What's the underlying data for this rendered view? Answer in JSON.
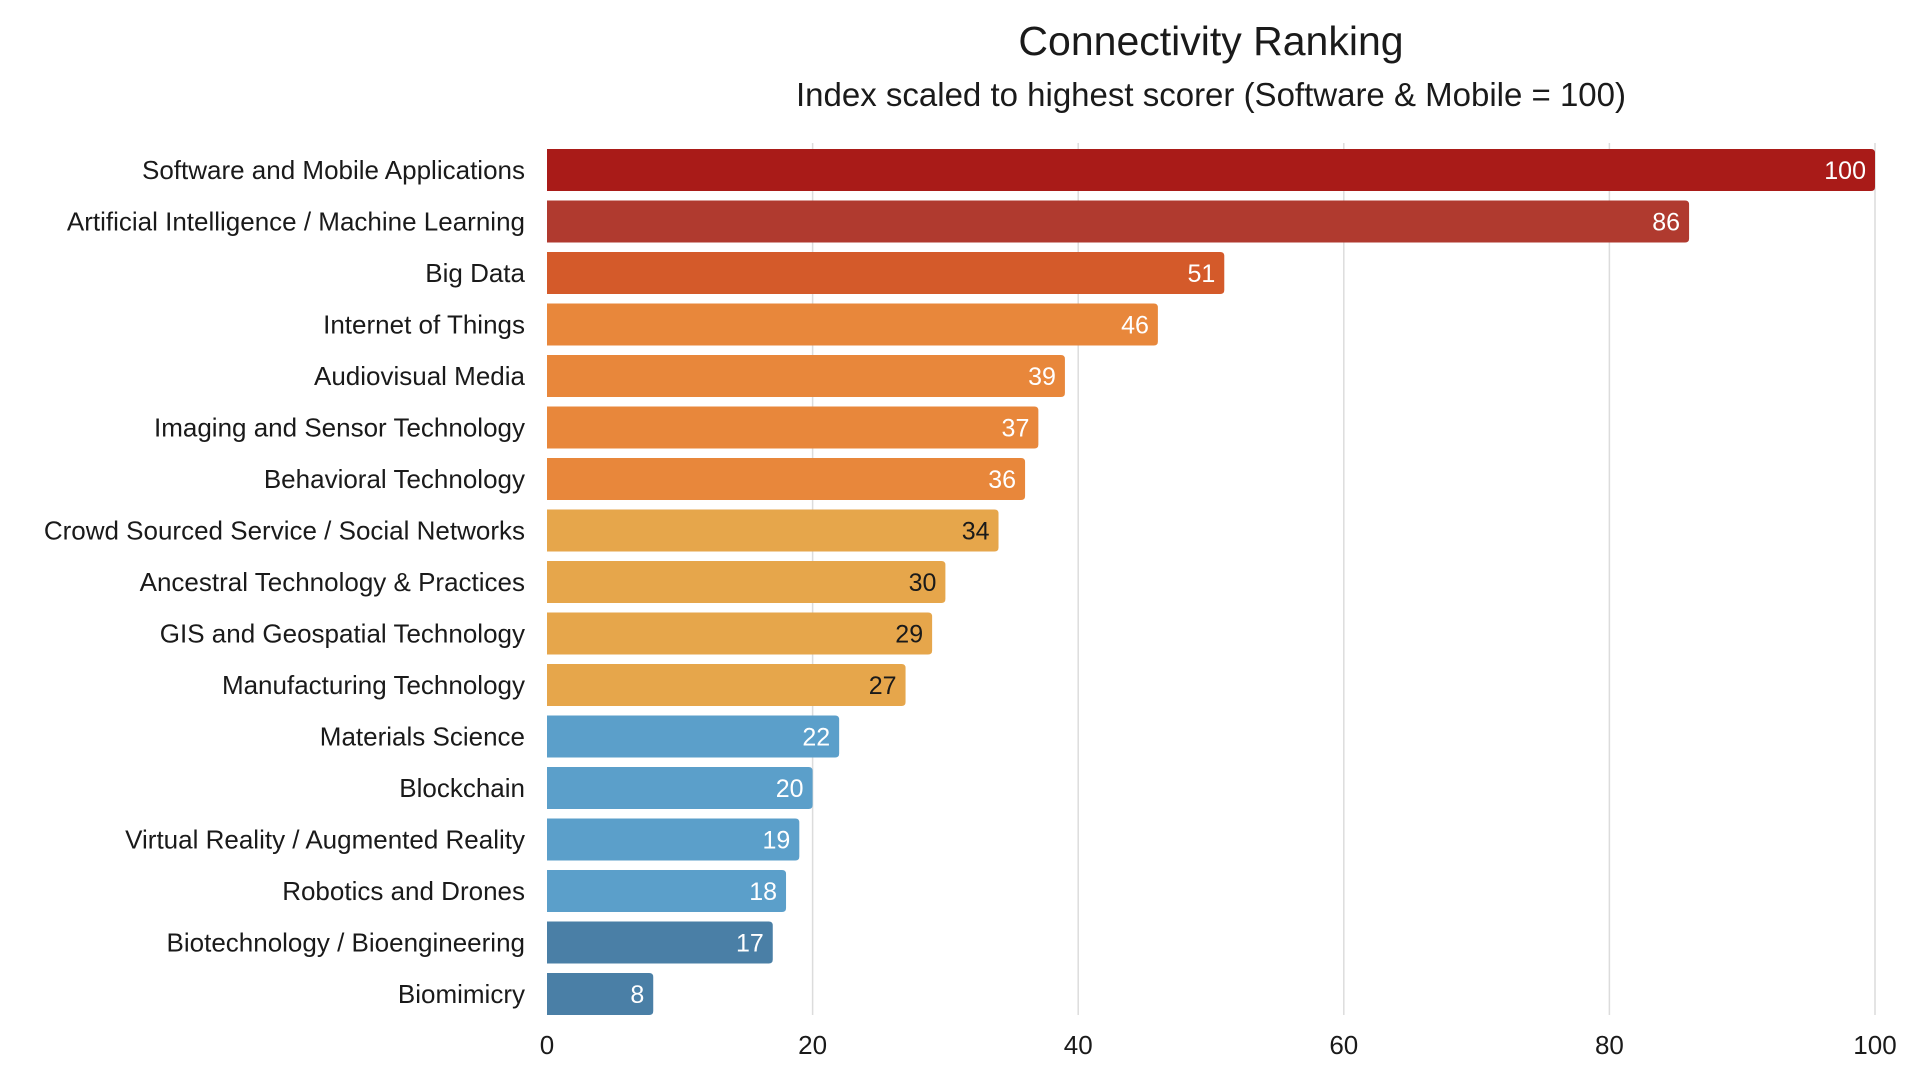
{
  "chart_data": {
    "type": "bar",
    "orientation": "horizontal",
    "title": "Connectivity Ranking",
    "subtitle": "Index scaled to highest scorer (Software & Mobile = 100)",
    "xlabel": "",
    "ylabel": "",
    "xlim": [
      0,
      100
    ],
    "xticks": [
      0,
      20,
      40,
      60,
      80,
      100
    ],
    "grid": "vertical",
    "categories": [
      "Software and Mobile Applications",
      "Artificial Intelligence / Machine Learning",
      "Big Data",
      "Internet of Things",
      "Audiovisual Media",
      "Imaging and Sensor Technology",
      "Behavioral Technology",
      "Crowd Sourced Service / Social Networks",
      "Ancestral Technology & Practices",
      "GIS and Geospatial Technology",
      "Manufacturing Technology",
      "Materials Science",
      "Blockchain",
      "Virtual Reality / Augmented Reality",
      "Robotics and Drones",
      "Biotechnology / Bioengineering",
      "Biomimicry"
    ],
    "values": [
      100,
      86,
      51,
      46,
      39,
      37,
      36,
      34,
      30,
      29,
      27,
      22,
      20,
      19,
      18,
      17,
      8
    ],
    "colors": [
      "#A91B18",
      "#B03A2F",
      "#D45A2A",
      "#E8873B",
      "#E8873B",
      "#E8873B",
      "#E8873B",
      "#E6A64B",
      "#E6A64B",
      "#E6A64B",
      "#E6A64B",
      "#5B9FCA",
      "#5B9FCA",
      "#5B9FCA",
      "#5B9FCA",
      "#4A7FA6",
      "#4A7FA6"
    ],
    "label_colors": [
      "#ffffff",
      "#ffffff",
      "#ffffff",
      "#ffffff",
      "#ffffff",
      "#ffffff",
      "#ffffff",
      "#1a1a1a",
      "#1a1a1a",
      "#1a1a1a",
      "#1a1a1a",
      "#ffffff",
      "#ffffff",
      "#ffffff",
      "#ffffff",
      "#ffffff",
      "#ffffff"
    ]
  }
}
